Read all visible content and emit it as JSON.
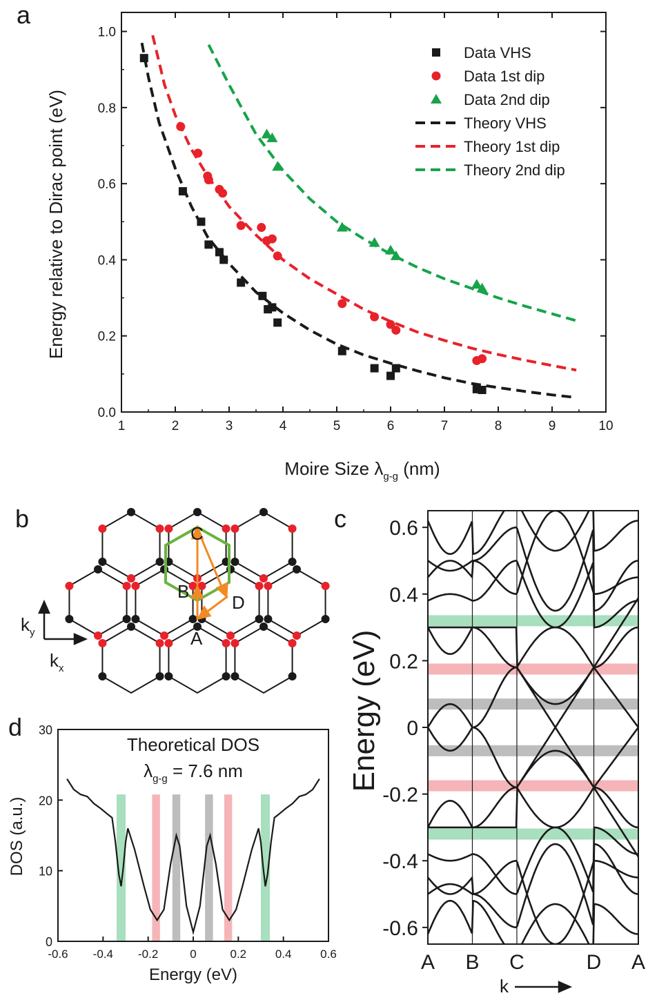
{
  "panels": {
    "a": {
      "letter": "a"
    },
    "b": {
      "letter": "b",
      "labels": {
        "A": "A",
        "B": "B",
        "C": "C",
        "D": "D",
        "ky": "k",
        "ky_sub": "y",
        "kx": "k",
        "kx_sub": "x"
      }
    },
    "c": {
      "letter": "c",
      "k_label": "k"
    },
    "d": {
      "letter": "d",
      "title_line1": "Theoretical DOS",
      "title_line2_sym": "λ",
      "title_line2_sub": "g-g",
      "title_line2_rest": " = 7.6 nm"
    }
  },
  "colors": {
    "vhs": "#1a1a1a",
    "dip1": "#e8222a",
    "dip2": "#17a34a",
    "arrow": "#f08a24",
    "hexagon": "#6ab33e",
    "band_green": "#a8dfbe",
    "band_red": "#f5b5b8",
    "band_gray": "#bdbdbd"
  },
  "chart_data": [
    {
      "panel": "a",
      "type": "scatter",
      "xlabel": "Moire Size λ",
      "xlabel_sub": "g-g",
      "xlabel_unit": "(nm)",
      "ylabel": "Energy relative to Dirac point (eV)",
      "xlim": [
        1,
        10
      ],
      "ylim": [
        0,
        1.05
      ],
      "xticks": [
        "1",
        "2",
        "3",
        "4",
        "5",
        "6",
        "7",
        "8",
        "9",
        "10"
      ],
      "yticks": [
        "0.0",
        "0.2",
        "0.4",
        "0.6",
        "0.8",
        "1.0"
      ],
      "legend_position": "top-right",
      "series": [
        {
          "name": "Data VHS",
          "marker": "square",
          "color_key": "vhs",
          "x": [
            1.42,
            2.14,
            2.48,
            2.62,
            2.82,
            2.9,
            3.22,
            3.62,
            3.72,
            3.8,
            3.9,
            5.1,
            5.7,
            6.0,
            6.1,
            7.6,
            7.7
          ],
          "y": [
            0.93,
            0.58,
            0.5,
            0.44,
            0.42,
            0.4,
            0.34,
            0.305,
            0.27,
            0.275,
            0.235,
            0.16,
            0.115,
            0.095,
            0.115,
            0.06,
            0.058
          ]
        },
        {
          "name": "Data 1st dip",
          "marker": "circle",
          "color_key": "dip1",
          "x": [
            2.1,
            2.42,
            2.6,
            2.62,
            2.82,
            2.88,
            3.22,
            3.6,
            3.7,
            3.8,
            3.9,
            5.1,
            5.7,
            6.0,
            6.1,
            7.6,
            7.7
          ],
          "y": [
            0.75,
            0.68,
            0.62,
            0.61,
            0.585,
            0.575,
            0.49,
            0.485,
            0.45,
            0.455,
            0.41,
            0.285,
            0.25,
            0.23,
            0.215,
            0.135,
            0.14
          ]
        },
        {
          "name": "Data 2nd dip",
          "marker": "triangle",
          "color_key": "dip2",
          "x": [
            3.7,
            3.8,
            3.9,
            5.1,
            5.7,
            6.0,
            6.1,
            7.6,
            7.7
          ],
          "y": [
            0.73,
            0.72,
            0.645,
            0.485,
            0.445,
            0.425,
            0.41,
            0.335,
            0.325
          ]
        },
        {
          "name": "Theory VHS",
          "line": "dashed",
          "color_key": "vhs",
          "x": [
            1.38,
            1.5,
            1.7,
            2.0,
            2.3,
            2.6,
            3.0,
            3.5,
            4.0,
            4.5,
            5.0,
            5.5,
            6.0,
            6.5,
            7.0,
            7.5,
            8.0,
            8.5,
            9.0,
            9.45
          ],
          "y": [
            0.97,
            0.88,
            0.76,
            0.64,
            0.54,
            0.46,
            0.39,
            0.315,
            0.26,
            0.215,
            0.178,
            0.15,
            0.128,
            0.108,
            0.09,
            0.075,
            0.064,
            0.054,
            0.045,
            0.038
          ]
        },
        {
          "name": "Theory 1st dip",
          "line": "dashed",
          "color_key": "dip1",
          "x": [
            1.58,
            1.8,
            2.0,
            2.3,
            2.6,
            3.0,
            3.5,
            4.0,
            4.5,
            5.0,
            5.5,
            6.0,
            6.5,
            7.0,
            7.5,
            8.0,
            8.5,
            9.0,
            9.45
          ],
          "y": [
            0.99,
            0.86,
            0.78,
            0.69,
            0.62,
            0.54,
            0.465,
            0.4,
            0.35,
            0.31,
            0.27,
            0.238,
            0.21,
            0.188,
            0.168,
            0.151,
            0.136,
            0.122,
            0.11
          ]
        },
        {
          "name": "Theory 2nd dip",
          "line": "dashed",
          "color_key": "dip2",
          "x": [
            2.62,
            3.0,
            3.5,
            4.0,
            4.5,
            5.0,
            5.5,
            6.0,
            6.5,
            7.0,
            7.5,
            8.0,
            8.5,
            9.0,
            9.45
          ],
          "y": [
            0.965,
            0.86,
            0.73,
            0.635,
            0.56,
            0.5,
            0.455,
            0.415,
            0.38,
            0.35,
            0.325,
            0.3,
            0.278,
            0.258,
            0.24
          ]
        }
      ]
    },
    {
      "panel": "c",
      "type": "line",
      "ylabel": "Energy (eV)",
      "ylim": [
        -0.65,
        0.65
      ],
      "yticks": [
        "0.6",
        "0.4",
        "0.2",
        "0",
        "-0.2",
        "-0.4",
        "-0.6"
      ],
      "k_points": [
        "A",
        "B",
        "C",
        "D",
        "A"
      ],
      "k_positions": [
        0,
        1,
        2,
        3.73,
        4.73
      ],
      "highlight_bands": [
        {
          "energy": 0.32,
          "color_key": "band_green"
        },
        {
          "energy": 0.175,
          "color_key": "band_red"
        },
        {
          "energy": 0.07,
          "color_key": "band_gray"
        },
        {
          "energy": -0.07,
          "color_key": "band_gray"
        },
        {
          "energy": -0.175,
          "color_key": "band_red"
        },
        {
          "energy": -0.32,
          "color_key": "band_green"
        }
      ]
    },
    {
      "panel": "d",
      "type": "line",
      "xlabel": "Energy (eV)",
      "ylabel": "DOS (a.u.)",
      "xlim": [
        -0.6,
        0.6
      ],
      "ylim": [
        0,
        30
      ],
      "xticks": [
        "-0.6",
        "-0.4",
        "-0.2",
        "0",
        "0.2",
        "0.4",
        "0.6"
      ],
      "yticks": [
        "0",
        "10",
        "20",
        "30"
      ],
      "x": [
        0,
        0.03,
        0.06,
        0.075,
        0.1,
        0.13,
        0.16,
        0.19,
        0.22,
        0.26,
        0.29,
        0.3,
        0.31,
        0.32,
        0.33,
        0.345,
        0.36,
        0.38,
        0.41,
        0.44,
        0.47,
        0.5,
        0.53,
        0.56
      ],
      "y": [
        1.3,
        5,
        13.5,
        15,
        11,
        4.5,
        3,
        4.5,
        8,
        13,
        16,
        14,
        10.5,
        7.8,
        9.5,
        14,
        17.5,
        18,
        18.8,
        19.5,
        20.5,
        20.8,
        21.5,
        23
      ],
      "highlight_bands": [
        {
          "x": -0.32,
          "width": 0.04,
          "color_key": "band_green"
        },
        {
          "x": -0.165,
          "width": 0.035,
          "color_key": "band_red"
        },
        {
          "x": -0.075,
          "width": 0.035,
          "color_key": "band_gray"
        },
        {
          "x": 0.07,
          "width": 0.035,
          "color_key": "band_gray"
        },
        {
          "x": 0.155,
          "width": 0.035,
          "color_key": "band_red"
        },
        {
          "x": 0.32,
          "width": 0.04,
          "color_key": "band_green"
        }
      ]
    }
  ]
}
